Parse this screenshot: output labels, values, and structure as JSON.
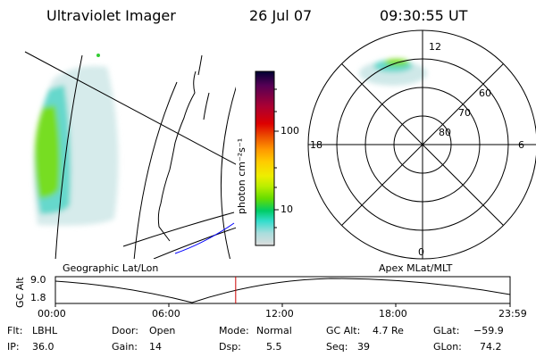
{
  "header": {
    "title": "Ultraviolet Imager",
    "date": "26 Jul 07",
    "time": "09:30:55 UT"
  },
  "geo_panel": {
    "caption": "Geographic Lat/Lon"
  },
  "polar_panel": {
    "caption": "Apex MLat/MLT",
    "mlt_labels": {
      "top": "12",
      "left": "18",
      "right": "6",
      "bottom": "0"
    },
    "lat_labels": [
      "60",
      "70",
      "80"
    ]
  },
  "colorbar": {
    "unit": "photon cm⁻²s⁻¹",
    "ticks": [
      "100",
      "10"
    ],
    "colors": [
      "#000033",
      "#550055",
      "#aa0033",
      "#dd0000",
      "#ee5500",
      "#ff9900",
      "#ffcc00",
      "#eeee00",
      "#bbee00",
      "#66dd00",
      "#00cc66",
      "#33ddcc",
      "#aadddd",
      "#dddddd"
    ]
  },
  "altitude_plot": {
    "axis_label": "GC Alt",
    "y_ticks": [
      "9.0",
      "1.8"
    ],
    "x_ticks": [
      "00:00",
      "06:00",
      "12:00",
      "18:00",
      "23:59"
    ],
    "current_time_fraction": 0.3965
  },
  "status": {
    "filter_label": "Flt:",
    "filter": "LBHL",
    "ip_label": "IP:",
    "ip": "36.0",
    "door_label": "Door:",
    "door": "Open",
    "gain_label": "Gain:",
    "gain": "14",
    "mode_label": "Mode:",
    "mode": "Normal",
    "dsp_label": "Dsp:",
    "dsp": "5.5",
    "gcalt_label": "GC Alt:",
    "gcalt": "4.7 Re",
    "seq_label": "Seq:",
    "seq": "39",
    "glat_label": "GLat:",
    "glat": "−59.9",
    "glon_label": "GLon:",
    "glon": "74.2"
  }
}
